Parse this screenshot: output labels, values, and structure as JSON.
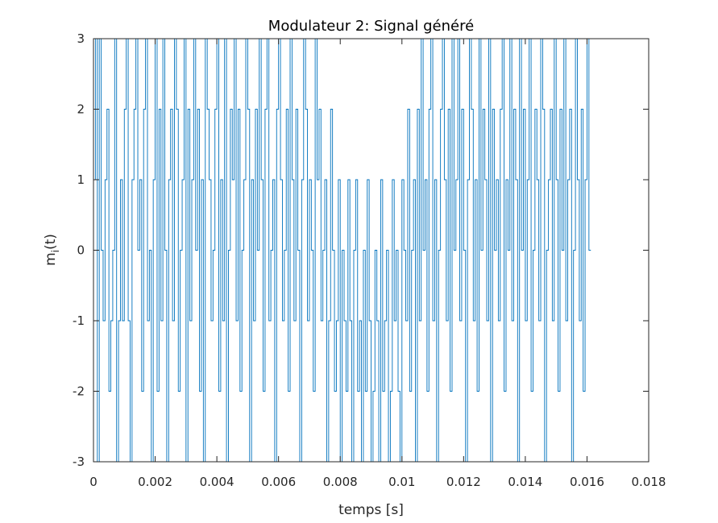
{
  "chart_data": {
    "type": "line",
    "title": "Modulateur 2: Signal généré",
    "xlabel": "temps [s]",
    "ylabel_main": "m",
    "ylabel_sub": "i",
    "ylabel_tail": "(t)",
    "xlim": [
      0,
      0.018
    ],
    "ylim": [
      -3,
      3
    ],
    "x_ticks": [
      0,
      0.002,
      0.004,
      0.006,
      0.008,
      0.01,
      0.012,
      0.014,
      0.016,
      0.018
    ],
    "x_tick_labels": [
      "0",
      "0.002",
      "0.004",
      "0.006",
      "0.008",
      "0.01",
      "0.012",
      "0.014",
      "0.016",
      "0.018"
    ],
    "y_ticks": [
      -3,
      -2,
      -1,
      0,
      1,
      2,
      3
    ],
    "y_tick_labels": [
      "-3",
      "-2",
      "-1",
      "0",
      "1",
      "2",
      "3"
    ],
    "grid": false,
    "legend": "none",
    "series": [
      {
        "color": "#0072bd",
        "step": "post",
        "x_start": 0,
        "x_step": 6.25e-05,
        "values": [
          1,
          3,
          -3,
          3,
          0,
          -1,
          1,
          2,
          -2,
          -1,
          0,
          3,
          -3,
          -1,
          1,
          -1,
          2,
          3,
          -1,
          -3,
          1,
          2,
          3,
          0,
          1,
          -2,
          2,
          3,
          -1,
          0,
          -3,
          1,
          3,
          -2,
          2,
          -1,
          3,
          0,
          -3,
          1,
          2,
          -1,
          3,
          2,
          -2,
          0,
          1,
          3,
          -3,
          2,
          -1,
          1,
          3,
          0,
          2,
          -2,
          1,
          -3,
          3,
          2,
          1,
          -1,
          0,
          2,
          3,
          -2,
          1,
          -1,
          3,
          -3,
          0,
          2,
          1,
          3,
          -1,
          2,
          -2,
          0,
          1,
          3,
          2,
          -3,
          1,
          -1,
          2,
          0,
          3,
          1,
          -2,
          2,
          3,
          -1,
          0,
          1,
          -3,
          2,
          3,
          1,
          -1,
          0,
          2,
          -2,
          3,
          1,
          -1,
          2,
          0,
          -3,
          1,
          3,
          2,
          -1,
          1,
          0,
          -2,
          3,
          1,
          2,
          -1,
          0,
          1,
          -3,
          -1,
          2,
          0,
          -2,
          -1,
          1,
          -3,
          0,
          -1,
          -2,
          1,
          -1,
          -3,
          0,
          1,
          -2,
          -1,
          -3,
          0,
          -2,
          1,
          -1,
          -3,
          -2,
          0,
          -1,
          -3,
          1,
          -2,
          -1,
          0,
          -3,
          -2,
          1,
          -1,
          0,
          -2,
          -3,
          1,
          0,
          -1,
          2,
          -2,
          0,
          1,
          -3,
          2,
          -1,
          3,
          0,
          1,
          -2,
          2,
          3,
          -1,
          1,
          -3,
          0,
          2,
          3,
          1,
          -1,
          2,
          -2,
          3,
          0,
          1,
          3,
          -1,
          2,
          0,
          -3,
          1,
          3,
          2,
          -1,
          1,
          -2,
          3,
          0,
          2,
          1,
          -1,
          3,
          -3,
          2,
          0,
          1,
          -1,
          2,
          3,
          -2,
          1,
          0,
          3,
          -1,
          2,
          1,
          -3,
          3,
          0,
          2,
          -1,
          1,
          3,
          -2,
          0,
          2,
          1,
          -1,
          3,
          2,
          -3,
          0,
          1,
          2,
          -1,
          3,
          1,
          -2,
          2,
          0,
          3,
          -1,
          1,
          2,
          -3,
          0,
          3,
          1,
          -1,
          2,
          -2,
          1,
          3,
          0
        ]
      }
    ]
  }
}
